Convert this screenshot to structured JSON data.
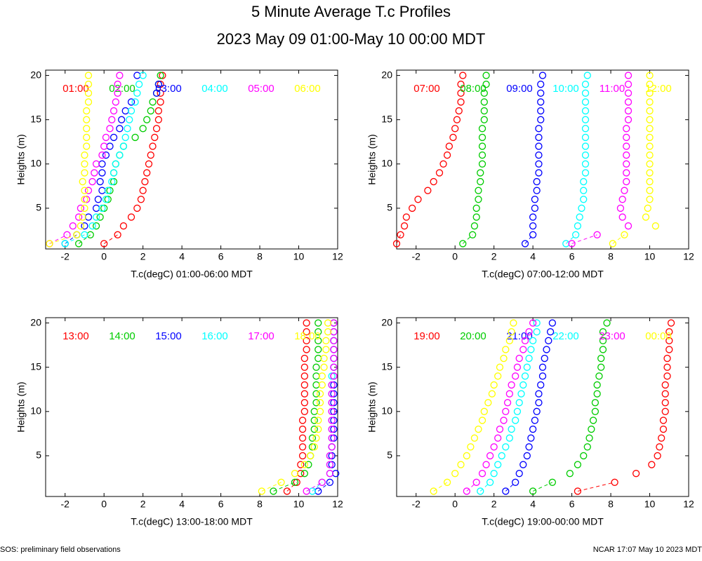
{
  "title": "5 Minute Average T.c Profiles",
  "subtitle": "2023 May 09 01:00-May 10 00:00 MDT",
  "footer_left": "SOS: preliminary field observations",
  "footer_right": "NCAR 17:07 May 10 2023 MDT",
  "chart_data": [
    {
      "type": "scatter",
      "xlabel": "T.c(degC) 01:00-06:00 MDT",
      "ylabel": "Heights (m)",
      "xlim": [
        -3,
        12
      ],
      "ylim": [
        0.4,
        20.6
      ],
      "xticks": [
        -2,
        0,
        2,
        4,
        6,
        8,
        10,
        12
      ],
      "yticks": [
        5,
        10,
        15,
        20
      ],
      "y": [
        1,
        2,
        3,
        4,
        5,
        6,
        7,
        8,
        9,
        10,
        11,
        12,
        13,
        14,
        15,
        16,
        17,
        18,
        19,
        20
      ],
      "series": [
        {
          "name": "01:00",
          "color": "#ff0000",
          "x": [
            0,
            0.7,
            1,
            1.4,
            1.7,
            1.9,
            2,
            2.1,
            2.2,
            2.3,
            2.4,
            2.5,
            2.6,
            2.7,
            2.8,
            2.8,
            2.9,
            2.9,
            2.9,
            3
          ]
        },
        {
          "name": "02:00",
          "color": "#00cc00",
          "x": [
            -1.3,
            -0.7,
            -0.4,
            -0.2,
            0,
            0.2,
            0.3,
            0.5,
            0.5,
            0.6,
            0.8,
            1,
            1.6,
            2,
            2.2,
            2.4,
            2.5,
            2.7,
            2.8,
            2.9
          ]
        },
        {
          "name": "03:00",
          "color": "#0000ff",
          "x": [
            -2,
            -1.4,
            -1,
            -0.8,
            -0.4,
            -0.3,
            -0.1,
            -0.2,
            -0.1,
            -0.1,
            0.1,
            0.3,
            0.5,
            0.8,
            0.9,
            1.1,
            1.4,
            2.7,
            2.8,
            1.7
          ]
        },
        {
          "name": "04:00",
          "color": "#00ffff",
          "x": [
            -2,
            -1,
            -0.6,
            -0.4,
            -0.1,
            0.1,
            0.2,
            0.4,
            0.5,
            0.6,
            0.8,
            1,
            1.1,
            1.2,
            1.3,
            1.4,
            1.6,
            1.7,
            1.8,
            2
          ]
        },
        {
          "name": "05:00",
          "color": "#ff00ff",
          "x": [
            -2.8,
            -1.9,
            -1.6,
            -1.3,
            -1.2,
            -0.9,
            -0.8,
            -0.6,
            -0.5,
            -0.4,
            -0.1,
            0,
            0.1,
            0.3,
            0.4,
            0.5,
            0.6,
            0.7,
            0.7,
            0.8
          ]
        },
        {
          "name": "06:00",
          "color": "#ffff00",
          "x": [
            -2.8,
            -1.4,
            -1.2,
            -1.1,
            -1,
            -1,
            -1,
            -1.1,
            -1,
            -1,
            -1,
            -0.9,
            -0.9,
            -0.9,
            -0.9,
            -0.9,
            -0.8,
            -0.8,
            -0.8,
            -0.8
          ]
        }
      ]
    },
    {
      "type": "scatter",
      "xlabel": "T.c(degC) 07:00-12:00 MDT",
      "ylabel": "Heights (m)",
      "xlim": [
        -3,
        12
      ],
      "ylim": [
        0.4,
        20.6
      ],
      "xticks": [
        -2,
        0,
        2,
        4,
        6,
        8,
        10,
        12
      ],
      "yticks": [
        5,
        10,
        15,
        20
      ],
      "y": [
        1,
        2,
        3,
        4,
        5,
        6,
        7,
        8,
        9,
        10,
        11,
        12,
        13,
        14,
        15,
        16,
        17,
        18,
        19,
        20
      ],
      "series": [
        {
          "name": "07:00",
          "color": "#ff0000",
          "x": [
            -3,
            -2.8,
            -2.6,
            -2.5,
            -2.2,
            -1.9,
            -1.4,
            -1.1,
            -0.8,
            -0.6,
            -0.4,
            -0.3,
            -0.1,
            0,
            0.1,
            0.2,
            0.3,
            0.3,
            0.3,
            0.4
          ]
        },
        {
          "name": "08:00",
          "color": "#00cc00",
          "x": [
            0.4,
            0.9,
            1,
            1.1,
            1.1,
            1.2,
            1.2,
            1.3,
            1.3,
            1.4,
            1.4,
            1.4,
            1.4,
            1.4,
            1.5,
            1.5,
            1.5,
            1.5,
            1.6,
            1.6
          ]
        },
        {
          "name": "09:00",
          "color": "#0000ff",
          "x": [
            3.6,
            4,
            4,
            4,
            4.1,
            4.1,
            4.2,
            4.2,
            4.3,
            4.3,
            4.3,
            4.3,
            4.3,
            4.3,
            4.4,
            4.4,
            4.4,
            4.4,
            4.4,
            4.5
          ]
        },
        {
          "name": "10:00",
          "color": "#00ffff",
          "x": [
            5.7,
            6.2,
            6.3,
            6.4,
            6.5,
            6.6,
            6.6,
            6.6,
            6.7,
            6.7,
            6.7,
            6.7,
            6.7,
            6.7,
            6.7,
            6.7,
            6.7,
            6.7,
            6.7,
            6.8
          ]
        },
        {
          "name": "11:00",
          "color": "#ff00ff",
          "x": [
            6,
            7.3,
            8.9,
            8.6,
            8.5,
            8.6,
            8.7,
            8.8,
            8.8,
            8.8,
            8.8,
            8.8,
            8.8,
            8.8,
            8.9,
            8.9,
            8.9,
            8.9,
            8.9,
            8.9
          ]
        },
        {
          "name": "12:00",
          "color": "#ffff00",
          "x": [
            8.1,
            8.7,
            10.3,
            9.8,
            9.9,
            10,
            10,
            10,
            10,
            10,
            10,
            10,
            10,
            10,
            10,
            10,
            10,
            10,
            10,
            10
          ]
        }
      ]
    },
    {
      "type": "scatter",
      "xlabel": "T.c(degC) 13:00-18:00 MDT",
      "ylabel": "Heights (m)",
      "xlim": [
        -3,
        12
      ],
      "ylim": [
        0.4,
        20.6
      ],
      "xticks": [
        -2,
        0,
        2,
        4,
        6,
        8,
        10,
        12
      ],
      "yticks": [
        5,
        10,
        15,
        20
      ],
      "y": [
        1,
        2,
        3,
        4,
        5,
        6,
        7,
        8,
        9,
        10,
        11,
        12,
        13,
        14,
        15,
        16,
        17,
        18,
        19,
        20
      ],
      "series": [
        {
          "name": "13:00",
          "color": "#ff0000",
          "x": [
            9.4,
            9.9,
            10.1,
            10.1,
            10.2,
            10.2,
            10.2,
            10.2,
            10.2,
            10.3,
            10.3,
            10.3,
            10.3,
            10.3,
            10.3,
            10.3,
            10.4,
            10.4,
            10.4,
            10.4
          ]
        },
        {
          "name": "14:00",
          "color": "#00cc00",
          "x": [
            8.7,
            9.8,
            10.3,
            10.5,
            10.6,
            10.7,
            10.7,
            10.8,
            10.8,
            10.8,
            10.9,
            10.9,
            10.9,
            10.9,
            10.9,
            11,
            11,
            11,
            11,
            11
          ]
        },
        {
          "name": "15:00",
          "color": "#0000ff",
          "x": [
            11,
            11.6,
            11.9,
            11.7,
            11.7,
            11.7,
            11.8,
            11.8,
            11.8,
            11.8,
            11.8,
            11.8,
            11.8,
            11.8,
            11.8,
            11.8,
            11.8,
            11.8,
            11.8,
            11.8
          ]
        },
        {
          "name": "16:00",
          "color": "#00ffff",
          "x": [
            10.7,
            11.2,
            11.6,
            11.6,
            11.6,
            11.7,
            11.7,
            11.7,
            11.7,
            11.7,
            11.7,
            11.7,
            11.7,
            11.7,
            11.8,
            11.8,
            11.8,
            11.8,
            11.8,
            11.8
          ]
        },
        {
          "name": "17:00",
          "color": "#ff00ff",
          "x": [
            10.4,
            11.2,
            11.6,
            11.6,
            11.6,
            11.7,
            11.7,
            11.7,
            11.7,
            11.7,
            11.7,
            11.7,
            11.7,
            11.8,
            11.8,
            11.8,
            11.8,
            11.8,
            11.8,
            11.8
          ]
        },
        {
          "name": "18:00",
          "color": "#ffff00",
          "x": [
            8.1,
            9.1,
            9.8,
            10.3,
            10.6,
            10.8,
            10.9,
            11,
            11,
            11.1,
            11.1,
            11.1,
            11.2,
            11.2,
            11.3,
            11.3,
            11.4,
            11.4,
            11.5,
            11.5
          ]
        }
      ]
    },
    {
      "type": "scatter",
      "xlabel": "T.c(degC) 19:00-00:00 MDT",
      "ylabel": "Heights (m)",
      "xlim": [
        -3,
        12
      ],
      "ylim": [
        0.4,
        20.6
      ],
      "xticks": [
        -2,
        0,
        2,
        4,
        6,
        8,
        10,
        12
      ],
      "yticks": [
        5,
        10,
        15,
        20
      ],
      "y": [
        1,
        2,
        3,
        4,
        5,
        6,
        7,
        8,
        9,
        10,
        11,
        12,
        13,
        14,
        15,
        16,
        17,
        18,
        19,
        20
      ],
      "series": [
        {
          "name": "19:00",
          "color": "#ff0000",
          "x": [
            6.3,
            8.2,
            9.3,
            10.1,
            10.4,
            10.5,
            10.6,
            10.7,
            10.7,
            10.8,
            10.8,
            10.8,
            10.8,
            10.9,
            10.9,
            10.9,
            11,
            11,
            11,
            11.1
          ]
        },
        {
          "name": "20:00",
          "color": "#00cc00",
          "x": [
            4,
            5,
            5.9,
            6.3,
            6.6,
            6.8,
            6.9,
            7,
            7.1,
            7.2,
            7.2,
            7.3,
            7.3,
            7.4,
            7.5,
            7.5,
            7.6,
            7.6,
            7.6,
            7.8
          ]
        },
        {
          "name": "21:00",
          "color": "#0000ff",
          "x": [
            2.6,
            3.1,
            3.3,
            3.5,
            3.7,
            3.8,
            3.9,
            4,
            4.1,
            4.2,
            4.3,
            4.3,
            4.4,
            4.5,
            4.5,
            4.6,
            4.7,
            4.8,
            4.9,
            5
          ]
        },
        {
          "name": "22:00",
          "color": "#00ffff",
          "x": [
            1.3,
            1.8,
            2,
            2.2,
            2.4,
            2.6,
            2.8,
            2.9,
            3.1,
            3.2,
            3.3,
            3.4,
            3.5,
            3.6,
            3.7,
            3.8,
            3.9,
            4,
            4.2,
            4.2
          ]
        },
        {
          "name": "23:00",
          "color": "#ff00ff",
          "x": [
            0.6,
            1.1,
            1.4,
            1.6,
            1.8,
            2,
            2.2,
            2.3,
            2.5,
            2.6,
            2.7,
            2.8,
            2.9,
            3.1,
            3.2,
            3.3,
            3.5,
            3.6,
            3.8,
            4
          ]
        },
        {
          "name": "00:00",
          "color": "#ffff00",
          "x": [
            -1.1,
            -0.4,
            0,
            0.3,
            0.6,
            0.8,
            1,
            1.2,
            1.4,
            1.5,
            1.7,
            1.9,
            2,
            2.2,
            2.3,
            2.5,
            2.6,
            2.8,
            2.9,
            3
          ]
        }
      ]
    }
  ]
}
